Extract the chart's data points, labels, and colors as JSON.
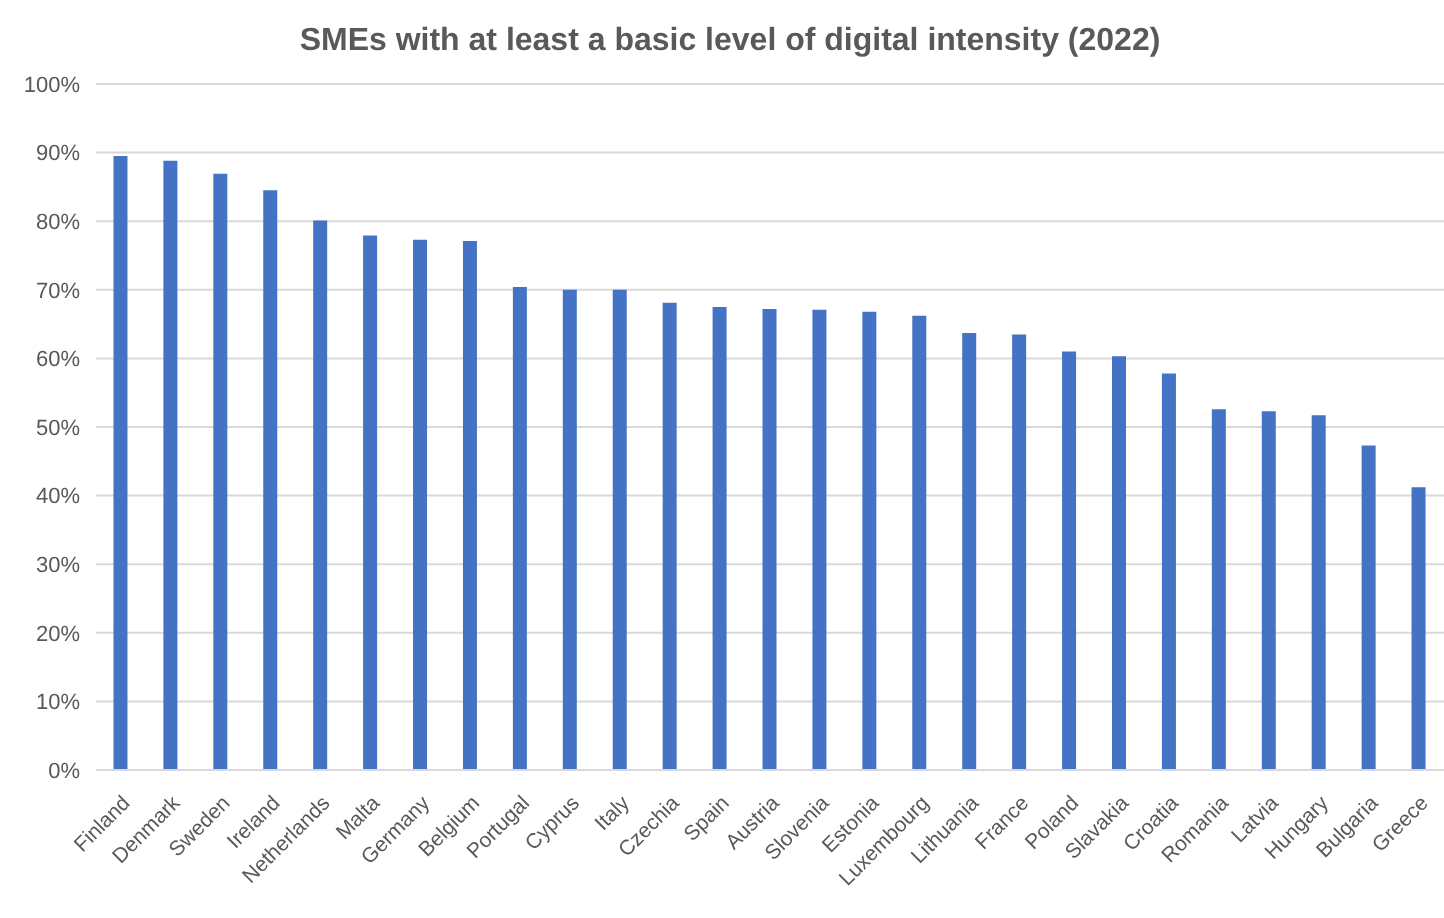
{
  "chart_data": {
    "type": "bar",
    "title": "SMEs with at least a basic level of digital intensity (2022)",
    "categories": [
      "Finland",
      "Denmark",
      "Sweden",
      "Ireland",
      "Netherlands",
      "Malta",
      "Germany",
      "Belgium",
      "Portugal",
      "Cyprus",
      "Italy",
      "Czechia",
      "Spain",
      "Austria",
      "Slovenia",
      "Estonia",
      "Luxembourg",
      "Lithuania",
      "France",
      "Poland",
      "Slavakia",
      "Croatia",
      "Romania",
      "Latvia",
      "Hungary",
      "Bulgaria",
      "Greece"
    ],
    "values": [
      89.5,
      88.8,
      86.9,
      84.5,
      80.1,
      77.9,
      77.3,
      77.1,
      70.4,
      70.0,
      70.0,
      68.1,
      67.5,
      67.2,
      67.1,
      66.8,
      66.2,
      63.7,
      63.5,
      61.0,
      60.3,
      57.8,
      52.6,
      52.3,
      51.7,
      47.3,
      41.2
    ],
    "color": "#4472c4",
    "ylim": [
      0,
      100
    ],
    "yticks": [
      {
        "value": 0,
        "label": "0%"
      },
      {
        "value": 10,
        "label": "10%"
      },
      {
        "value": 20,
        "label": "20%"
      },
      {
        "value": 30,
        "label": "30%"
      },
      {
        "value": 40,
        "label": "40%"
      },
      {
        "value": 50,
        "label": "50%"
      },
      {
        "value": 60,
        "label": "60%"
      },
      {
        "value": 70,
        "label": "70%"
      },
      {
        "value": 80,
        "label": "80%"
      },
      {
        "value": 90,
        "label": "90%"
      },
      {
        "value": 100,
        "label": "100%"
      }
    ],
    "grid": "y",
    "legend": false
  }
}
